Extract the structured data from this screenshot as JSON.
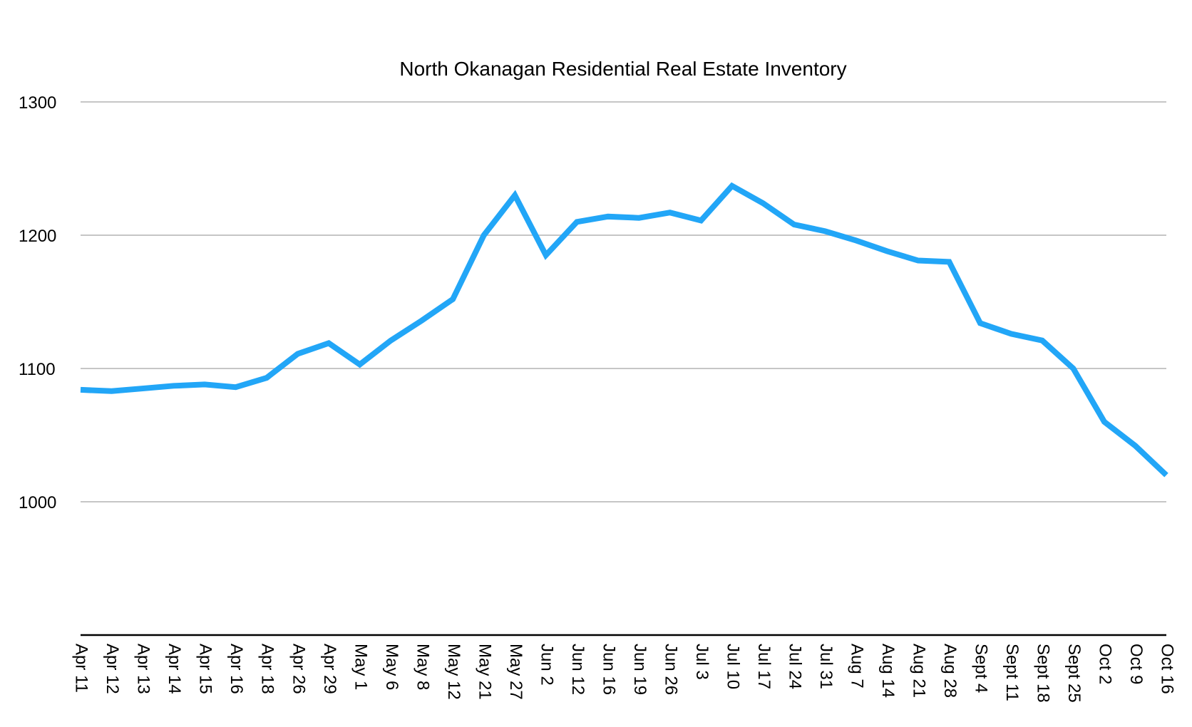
{
  "chart_data": {
    "type": "line",
    "title": "North Okanagan Residential Real Estate Inventory",
    "xlabel": "",
    "ylabel": "",
    "ylim": [
      900,
      1300
    ],
    "yticks": [
      1000,
      1100,
      1200,
      1300
    ],
    "grid": true,
    "legend": "none",
    "categories": [
      "Apr 11",
      "Apr 12",
      "Apr 13",
      "Apr 14",
      "Apr 15",
      "Apr 16",
      "Apr 18",
      "Apr 26",
      "Apr 29",
      "May 1",
      "May 6",
      "May 8",
      "May 12",
      "May 21",
      "May 27",
      "Jun 2",
      "Jun 12",
      "Jun 16",
      "Jun 19",
      "Jun 26",
      "Jul 3",
      "Jul 10",
      "Jul 17",
      "Jul 24",
      "Jul 31",
      "Aug 7",
      "Aug 14",
      "Aug 21",
      "Aug 28",
      "Sept 4",
      "Sept 11",
      "Sept 18",
      "Sept  25",
      "Oct 2",
      "Oct 9",
      "Oct 16"
    ],
    "series": [
      {
        "values": [
          1084,
          1083,
          1085,
          1087,
          1088,
          1086,
          1093,
          1111,
          1119,
          1103,
          1121,
          1136,
          1152,
          1200,
          1230,
          1185,
          1210,
          1214,
          1213,
          1217,
          1211,
          1237,
          1224,
          1208,
          1203,
          1196,
          1188,
          1181,
          1180,
          1134,
          1126,
          1121,
          1100,
          1060,
          1042,
          1020
        ],
        "color": "#22a6f7"
      }
    ],
    "colors": {
      "line": "#22a6f7",
      "grid": "#c6c6c6",
      "axis": "#000000",
      "text": "#000000"
    }
  }
}
